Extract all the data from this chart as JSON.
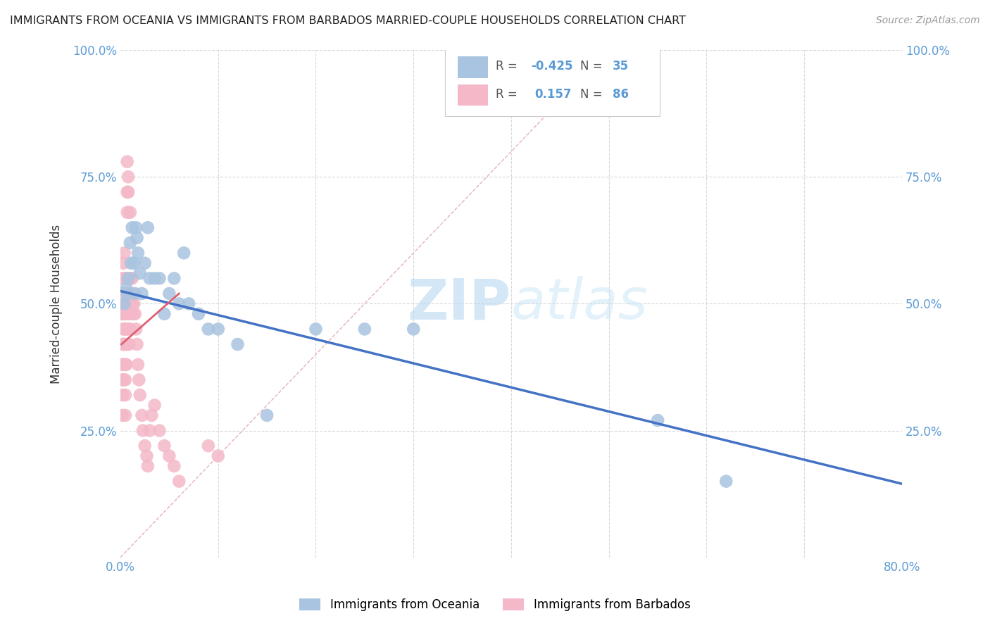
{
  "title": "IMMIGRANTS FROM OCEANIA VS IMMIGRANTS FROM BARBADOS MARRIED-COUPLE HOUSEHOLDS CORRELATION CHART",
  "source": "Source: ZipAtlas.com",
  "ylabel": "Married-couple Households",
  "xlim": [
    0.0,
    0.8
  ],
  "ylim": [
    0.0,
    1.0
  ],
  "legend1_label": "Immigrants from Oceania",
  "legend2_label": "Immigrants from Barbados",
  "R_oceania": -0.425,
  "N_oceania": 35,
  "R_barbados": 0.157,
  "N_barbados": 86,
  "color_oceania": "#a8c4e0",
  "color_barbados": "#f4b8c8",
  "line_color_oceania": "#4472c4",
  "line_color_barbados": "#e06070",
  "diag_color": "#e8b0b8",
  "grid_color": "#d8d8d8",
  "background_color": "#ffffff",
  "watermark_color": "#cde4f5",
  "oceania_x": [
    0.004,
    0.006,
    0.007,
    0.008,
    0.01,
    0.011,
    0.012,
    0.014,
    0.015,
    0.016,
    0.017,
    0.018,
    0.02,
    0.022,
    0.025,
    0.028,
    0.03,
    0.035,
    0.04,
    0.045,
    0.05,
    0.055,
    0.06,
    0.065,
    0.07,
    0.08,
    0.09,
    0.1,
    0.12,
    0.15,
    0.2,
    0.25,
    0.3,
    0.55,
    0.62
  ],
  "oceania_y": [
    0.5,
    0.53,
    0.52,
    0.55,
    0.62,
    0.58,
    0.65,
    0.58,
    0.52,
    0.65,
    0.63,
    0.6,
    0.56,
    0.52,
    0.58,
    0.65,
    0.55,
    0.55,
    0.55,
    0.48,
    0.52,
    0.55,
    0.5,
    0.6,
    0.5,
    0.48,
    0.45,
    0.45,
    0.42,
    0.28,
    0.45,
    0.45,
    0.45,
    0.27,
    0.15
  ],
  "barbados_x": [
    0.001,
    0.001,
    0.001,
    0.002,
    0.002,
    0.002,
    0.002,
    0.002,
    0.002,
    0.002,
    0.002,
    0.003,
    0.003,
    0.003,
    0.003,
    0.003,
    0.003,
    0.003,
    0.003,
    0.004,
    0.004,
    0.004,
    0.004,
    0.004,
    0.004,
    0.004,
    0.005,
    0.005,
    0.005,
    0.005,
    0.005,
    0.005,
    0.005,
    0.005,
    0.006,
    0.006,
    0.006,
    0.006,
    0.006,
    0.006,
    0.007,
    0.007,
    0.007,
    0.007,
    0.007,
    0.007,
    0.008,
    0.008,
    0.008,
    0.008,
    0.009,
    0.009,
    0.009,
    0.009,
    0.01,
    0.01,
    0.01,
    0.01,
    0.011,
    0.011,
    0.012,
    0.012,
    0.013,
    0.013,
    0.014,
    0.015,
    0.016,
    0.017,
    0.018,
    0.019,
    0.02,
    0.022,
    0.023,
    0.025,
    0.027,
    0.028,
    0.03,
    0.032,
    0.035,
    0.04,
    0.045,
    0.05,
    0.055,
    0.06,
    0.09,
    0.1
  ],
  "barbados_y": [
    0.5,
    0.52,
    0.48,
    0.5,
    0.55,
    0.42,
    0.48,
    0.38,
    0.35,
    0.32,
    0.28,
    0.5,
    0.48,
    0.45,
    0.42,
    0.38,
    0.52,
    0.58,
    0.35,
    0.5,
    0.48,
    0.45,
    0.42,
    0.38,
    0.55,
    0.6,
    0.5,
    0.48,
    0.45,
    0.42,
    0.38,
    0.35,
    0.32,
    0.28,
    0.55,
    0.52,
    0.48,
    0.45,
    0.42,
    0.38,
    0.78,
    0.72,
    0.68,
    0.55,
    0.5,
    0.48,
    0.75,
    0.72,
    0.5,
    0.45,
    0.55,
    0.52,
    0.48,
    0.42,
    0.68,
    0.55,
    0.5,
    0.45,
    0.55,
    0.52,
    0.55,
    0.5,
    0.52,
    0.48,
    0.5,
    0.48,
    0.45,
    0.42,
    0.38,
    0.35,
    0.32,
    0.28,
    0.25,
    0.22,
    0.2,
    0.18,
    0.25,
    0.28,
    0.3,
    0.25,
    0.22,
    0.2,
    0.18,
    0.15,
    0.22,
    0.2
  ],
  "oceania_line_x0": 0.0,
  "oceania_line_y0": 0.525,
  "oceania_line_x1": 0.8,
  "oceania_line_y1": 0.145,
  "barbados_line_x0": 0.001,
  "barbados_line_y0": 0.42,
  "barbados_line_x1": 0.06,
  "barbados_line_y1": 0.52
}
